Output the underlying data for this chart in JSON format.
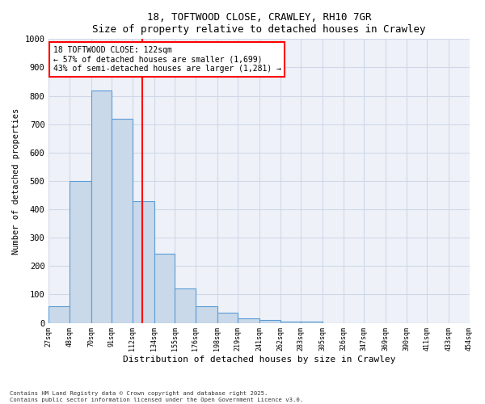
{
  "title_line1": "18, TOFTWOOD CLOSE, CRAWLEY, RH10 7GR",
  "title_line2": "Size of property relative to detached houses in Crawley",
  "xlabel": "Distribution of detached houses by size in Crawley",
  "ylabel": "Number of detached properties",
  "bin_edges": [
    27,
    48,
    70,
    91,
    112,
    134,
    155,
    176,
    198,
    219,
    241,
    262,
    283,
    305,
    326,
    347,
    369,
    390,
    411,
    433,
    454
  ],
  "bar_heights": [
    60,
    500,
    820,
    720,
    430,
    245,
    120,
    60,
    35,
    15,
    10,
    5,
    5,
    0,
    0,
    0,
    0,
    0,
    0,
    0
  ],
  "bar_color": "#c9d9ea",
  "bar_edge_color": "#5b9bd5",
  "vline_x": 122,
  "vline_color": "red",
  "annotation_text": "18 TOFTWOOD CLOSE: 122sqm\n← 57% of detached houses are smaller (1,699)\n43% of semi-detached houses are larger (1,281) →",
  "annotation_box_color": "red",
  "ylim": [
    0,
    1000
  ],
  "yticks": [
    0,
    100,
    200,
    300,
    400,
    500,
    600,
    700,
    800,
    900,
    1000
  ],
  "grid_color": "#d0d8e8",
  "bg_color": "#eef2f8",
  "footer_line1": "Contains HM Land Registry data © Crown copyright and database right 2025.",
  "footer_line2": "Contains public sector information licensed under the Open Government Licence v3.0."
}
